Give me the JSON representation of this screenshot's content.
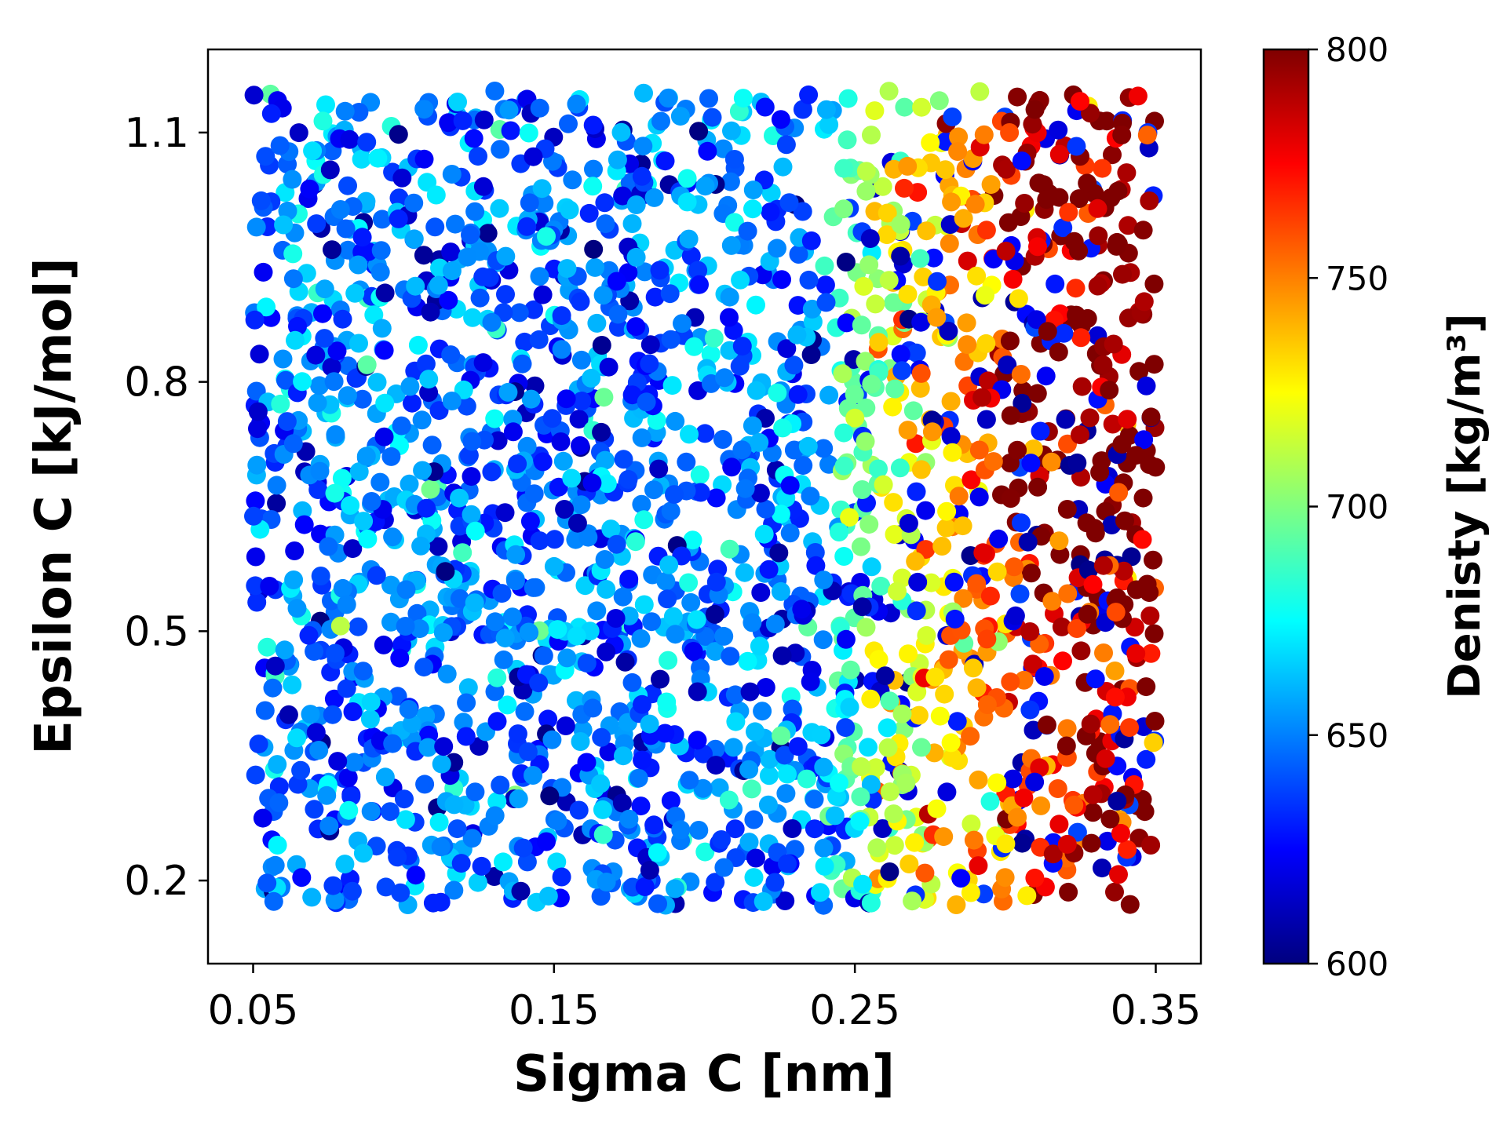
{
  "chart_data": {
    "type": "scatter",
    "title": "",
    "xlabel": "Sigma C [nm]",
    "ylabel": "Epsilon C [kJ/mol]",
    "xlim": [
      0.035,
      0.365
    ],
    "ylim": [
      0.1,
      1.2
    ],
    "xticks": [
      0.05,
      0.15,
      0.25,
      0.35
    ],
    "xtick_labels": [
      "0.05",
      "0.15",
      "0.25",
      "0.35"
    ],
    "yticks": [
      0.2,
      0.5,
      0.8,
      1.1
    ],
    "ytick_labels": [
      "0.2",
      "0.5",
      "0.8",
      "1.1"
    ],
    "grid": false,
    "legend": null,
    "x_sample_range": [
      0.05,
      0.35
    ],
    "y_sample_range": [
      0.17,
      1.15
    ],
    "approx_point_count": 2400,
    "point_color_trend": "density rises with Sigma C: mostly 600-670 for Sigma C below ~0.22, mixed 680-740 around 0.24-0.27, and 760-800 for Sigma C above ~0.28, strongest at high Epsilon C",
    "colorbar": {
      "label": "Denisty [kg/m³]",
      "colormap": "jet",
      "range": [
        600,
        800
      ],
      "ticks": [
        600,
        650,
        700,
        750,
        800
      ],
      "tick_labels": [
        "600",
        "650",
        "700",
        "750",
        "800"
      ],
      "stops": [
        "#00007f",
        "#0000ff",
        "#0080ff",
        "#00ffff",
        "#80ff80",
        "#ffff00",
        "#ff8000",
        "#ff0000",
        "#7f0000"
      ]
    }
  }
}
